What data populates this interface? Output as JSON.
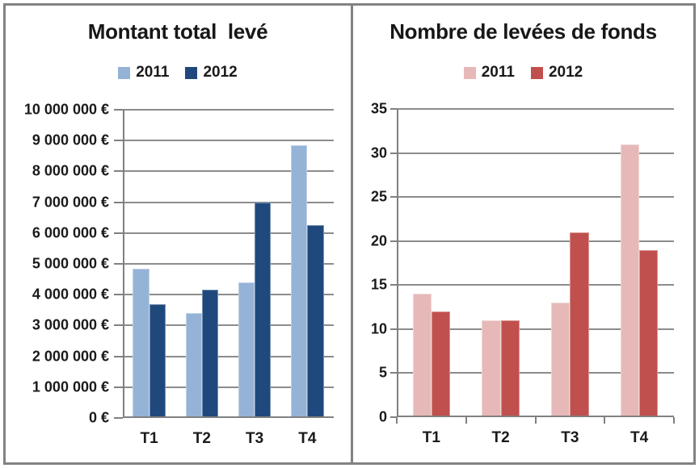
{
  "page": {
    "background": "#FFFFFF",
    "border_color": "#828282",
    "grid_color": "#8C8C8C",
    "text_color": "#1A1A1A"
  },
  "chart_data": [
    {
      "type": "bar",
      "title": "Montant total  levé",
      "categories": [
        "T1",
        "T2",
        "T3",
        "T4"
      ],
      "series": [
        {
          "name": "2011",
          "color": "#95B3D7",
          "values": [
            4850000,
            3400000,
            4400000,
            8850000
          ]
        },
        {
          "name": "2012",
          "color": "#1F497D",
          "values": [
            3700000,
            4150000,
            7000000,
            6250000
          ]
        }
      ],
      "ylim": [
        0,
        10000000
      ],
      "ytick_step": 1000000,
      "ytick_labels": [
        "0 €",
        "1 000 000 €",
        "2 000 000 €",
        "3 000 000 €",
        "4 000 000 €",
        "5 000 000 €",
        "6 000 000 €",
        "7 000 000 €",
        "8 000 000 €",
        "9 000 000 €",
        "10 000 000 €"
      ],
      "xlabel": "",
      "ylabel": "",
      "grid": true,
      "legend_position": "top"
    },
    {
      "type": "bar",
      "title": "Nombre de levées de fonds",
      "categories": [
        "T1",
        "T2",
        "T3",
        "T4"
      ],
      "series": [
        {
          "name": "2011",
          "color": "#E6B9B8",
          "values": [
            14,
            11,
            13,
            31
          ]
        },
        {
          "name": "2012",
          "color": "#C0504D",
          "values": [
            12,
            11,
            21,
            19
          ]
        }
      ],
      "ylim": [
        0,
        35
      ],
      "ytick_step": 5,
      "ytick_labels": [
        "0",
        "5",
        "10",
        "15",
        "20",
        "25",
        "30",
        "35"
      ],
      "xlabel": "",
      "ylabel": "",
      "grid": true,
      "legend_position": "top"
    }
  ]
}
